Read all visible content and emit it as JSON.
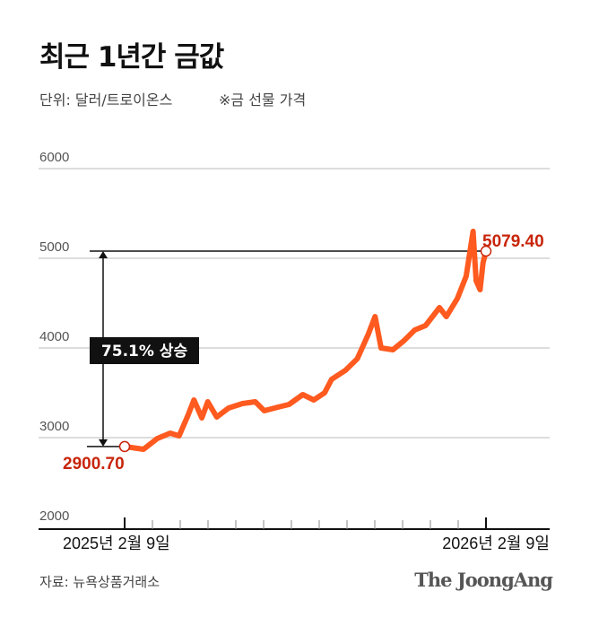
{
  "header": {
    "title": "최근 1년간 금값",
    "unit": "단위: 달러/트로이온스",
    "note": "※금 선물 가격"
  },
  "footer": {
    "source": "자료: 뉴욕상품거래소",
    "logo": "The JoongAng"
  },
  "colors": {
    "line": "#ff5a1f",
    "label": "#c8250b",
    "annotation_box": "#111111",
    "grid": "#dddddd"
  },
  "chart_data": {
    "type": "line",
    "title": "최근 1년간 금값",
    "ylabel": "",
    "xlabel": "",
    "ylim": [
      2000,
      6000
    ],
    "yticks": [
      "2000",
      "3000",
      "4000",
      "5000",
      "6000"
    ],
    "x_tick_labels": [
      "2025년 2월 9일",
      "2026년 2월 9일"
    ],
    "grid": true,
    "start_label": "2900.70",
    "end_label": "5079.40",
    "change_label": "75.1% 상승",
    "x": [
      "2025-02-09",
      "2025-02-28",
      "2025-03-14",
      "2025-03-27",
      "2025-04-05",
      "2025-04-14",
      "2025-04-20",
      "2025-04-28",
      "2025-05-04",
      "2025-05-13",
      "2025-05-25",
      "2025-06-08",
      "2025-06-21",
      "2025-06-30",
      "2025-07-14",
      "2025-07-25",
      "2025-08-08",
      "2025-08-19",
      "2025-08-30",
      "2025-09-06",
      "2025-09-20",
      "2025-10-02",
      "2025-10-13",
      "2025-10-20",
      "2025-10-26",
      "2025-11-07",
      "2025-11-18",
      "2025-11-29",
      "2025-12-10",
      "2025-12-24",
      "2025-12-31",
      "2026-01-11",
      "2026-01-20",
      "2026-01-27",
      "2026-01-30",
      "2026-02-03",
      "2026-02-06",
      "2026-02-09"
    ],
    "values": [
      2900.7,
      2870,
      2990,
      3050,
      3020,
      3250,
      3420,
      3220,
      3400,
      3230,
      3330,
      3380,
      3400,
      3300,
      3340,
      3370,
      3480,
      3420,
      3500,
      3650,
      3750,
      3880,
      4150,
      4350,
      4000,
      3980,
      4080,
      4200,
      4250,
      4450,
      4350,
      4550,
      4800,
      5300,
      4750,
      4650,
      4950,
      5079.4
    ]
  }
}
